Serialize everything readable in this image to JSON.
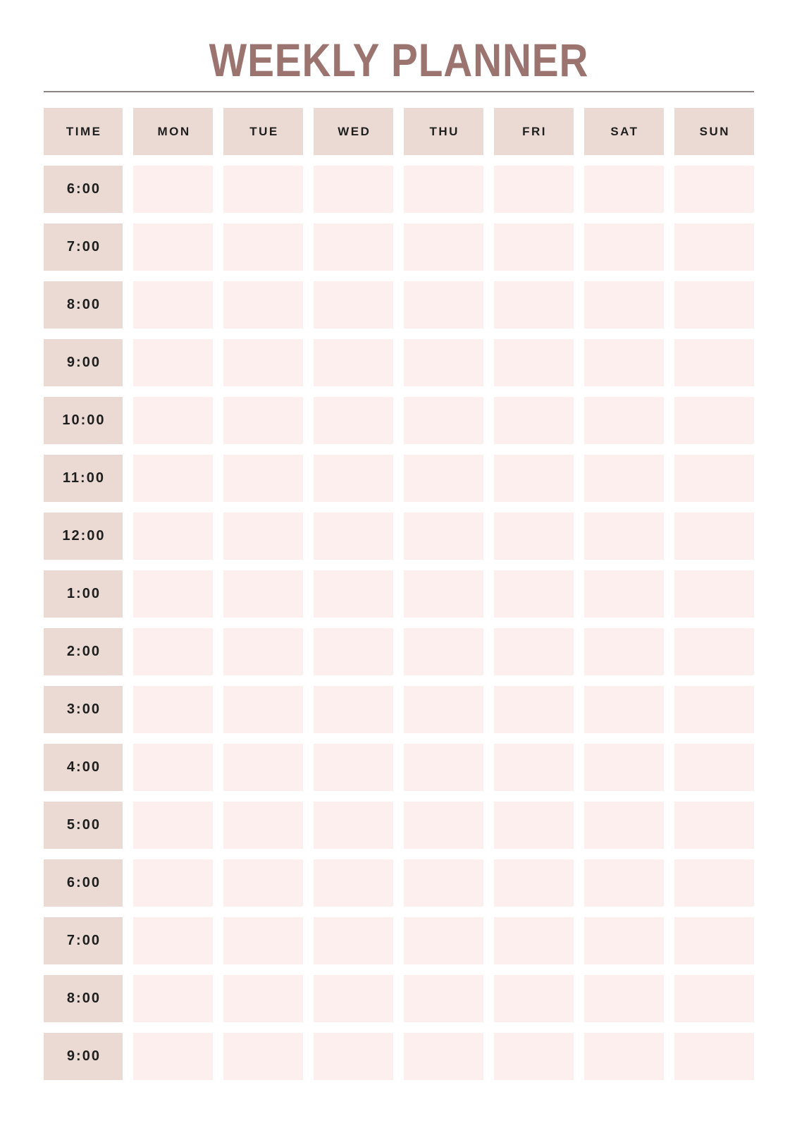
{
  "title": "WEEKLY PLANNER",
  "planner": {
    "columns": [
      "TIME",
      "MON",
      "TUE",
      "WED",
      "THU",
      "FRI",
      "SAT",
      "SUN"
    ],
    "times": [
      "6:00",
      "7:00",
      "8:00",
      "9:00",
      "10:00",
      "11:00",
      "12:00",
      "1:00",
      "2:00",
      "3:00",
      "4:00",
      "5:00",
      "6:00",
      "7:00",
      "8:00",
      "9:00"
    ],
    "slot_value": ""
  },
  "colors": {
    "page_bg": "#ffffff",
    "title_color": "#9b7470",
    "divider_color": "#8e8383",
    "label_cell_bg": "#ebdad3",
    "slot_cell_bg": "#fcefee",
    "label_text": "#1e1e1e"
  }
}
